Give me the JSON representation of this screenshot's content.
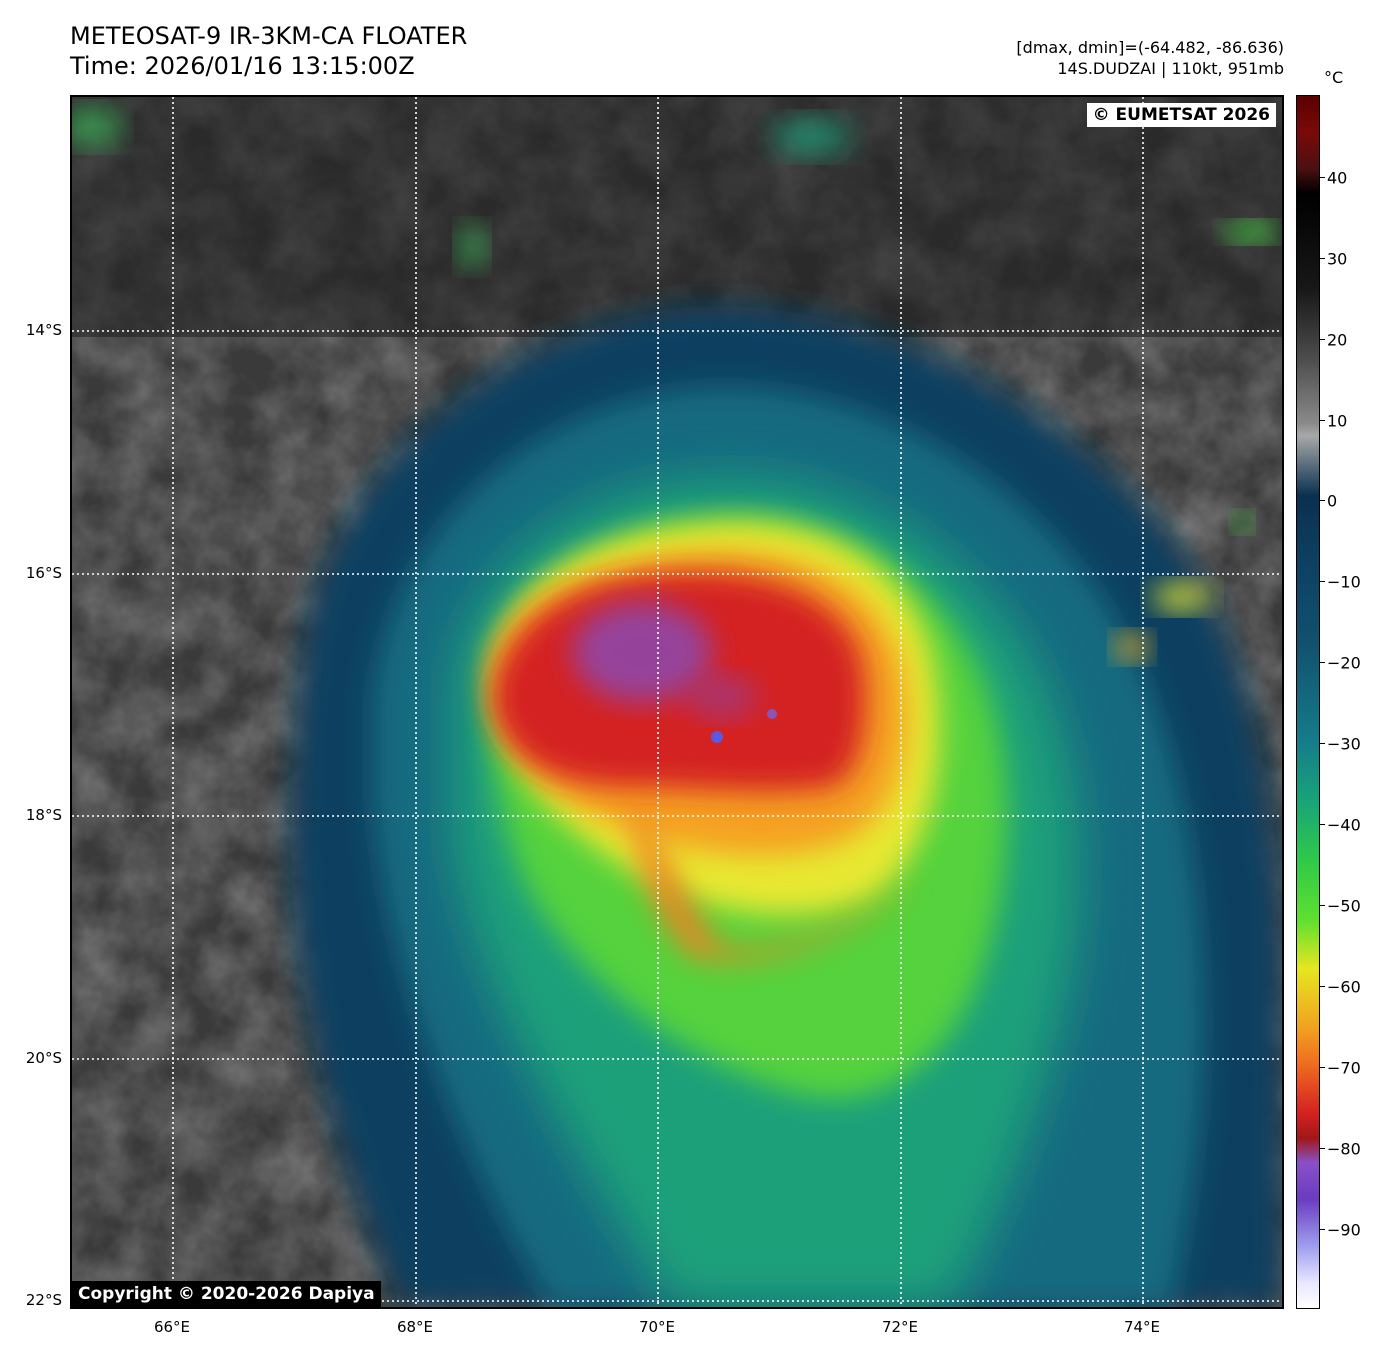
{
  "header": {
    "title_line1": "METEOSAT-9 IR-3KM-CA FLOATER",
    "title_line2": "Time: 2026/01/16 13:15:00Z",
    "info_line1": "[dmax, dmin]=(-64.482, -86.636)",
    "info_line2": "14S.DUDZAI | 110kt, 951mb"
  },
  "map": {
    "watermark_top": "© EUMETSAT 2026",
    "watermark_bottom": "Copyright © 2020-2026 Dapiya",
    "lat_labels": [
      "14°S",
      "16°S",
      "18°S",
      "20°S",
      "22°S"
    ],
    "lon_labels": [
      "66°E",
      "68°E",
      "70°E",
      "72°E",
      "74°E"
    ]
  },
  "colorbar": {
    "unit": "°C",
    "ticks": [
      "40",
      "30",
      "20",
      "10",
      "0",
      "−10",
      "−20",
      "−30",
      "−40",
      "−50",
      "−60",
      "−70",
      "−80",
      "−90"
    ]
  }
}
